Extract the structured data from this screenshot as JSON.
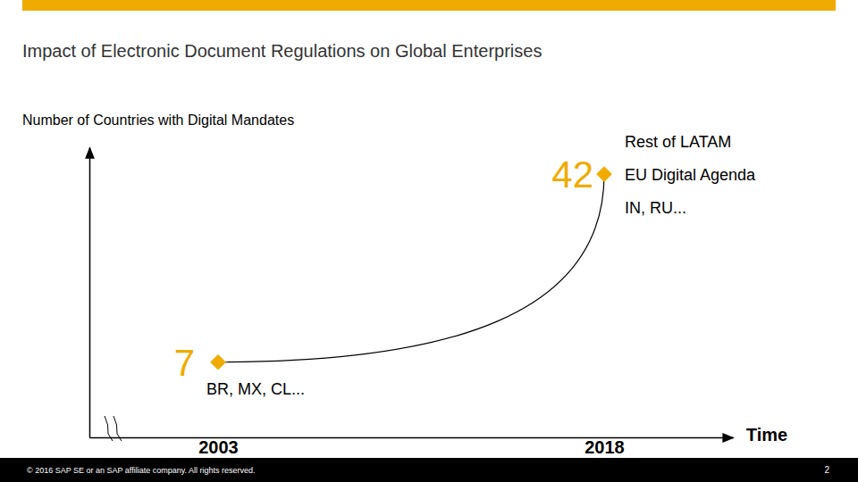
{
  "chart_data": {
    "type": "line",
    "title": "Impact of Electronic Document Regulations on Global Enterprises",
    "subtitle": "Number of Countries with Digital Mandates",
    "x_label": "Time",
    "x": [
      2003,
      2018
    ],
    "values": [
      7,
      42
    ],
    "point_notes": [
      [
        "BR, MX, CL..."
      ],
      [
        "Rest of LATAM",
        "EU Digital Agenda",
        "IN, RU..."
      ]
    ],
    "color": "#f0ab00",
    "marker": "diamond",
    "data_labels": true,
    "xlim": [
      1998,
      2023
    ],
    "xticks": [
      2003,
      2018
    ],
    "ylim": [
      -7,
      47
    ],
    "tick_labels": "x"
  },
  "footer": {
    "text": "© 2016 SAP SE or an SAP affiliate company. All rights reserved.",
    "page": 2
  }
}
